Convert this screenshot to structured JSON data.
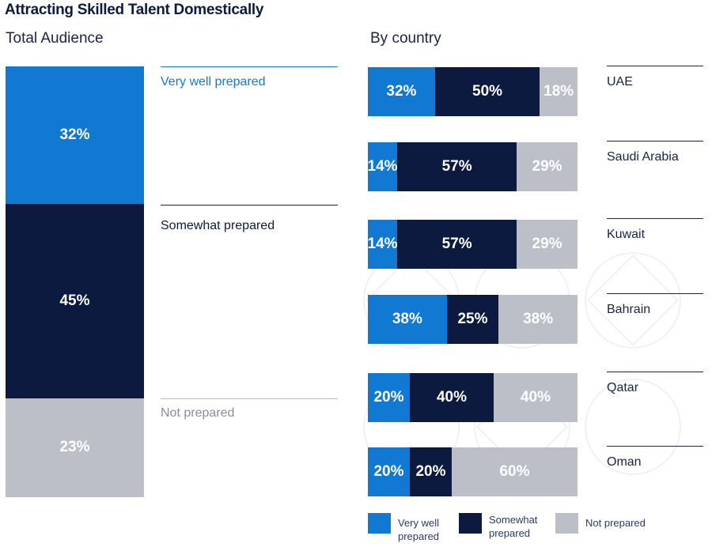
{
  "title": "Attracting Skilled Talent Domestically",
  "left_subtitle": "Total Audience",
  "right_subtitle": "By country",
  "colors": {
    "very_well": "#1279d3",
    "somewhat": "#0c1a40",
    "not": "#bdbfc8",
    "very_well_text": "#1279d3",
    "not_text": "#8a8d99"
  },
  "chart_data": [
    {
      "type": "bar",
      "stacked": true,
      "orientation": "vertical",
      "title": "Total Audience",
      "categories": [
        "Total Audience"
      ],
      "series": [
        {
          "name": "Very well prepared",
          "values": [
            32
          ]
        },
        {
          "name": "Somewhat prepared",
          "values": [
            45
          ]
        },
        {
          "name": "Not prepared",
          "values": [
            23
          ]
        }
      ],
      "labels": [
        "32%",
        "45%",
        "23%"
      ],
      "ylim": [
        0,
        100
      ]
    },
    {
      "type": "bar",
      "stacked": true,
      "orientation": "horizontal",
      "title": "By country",
      "categories": [
        "UAE",
        "Saudi Arabia",
        "Kuwait",
        "Bahrain",
        "Qatar",
        "Oman"
      ],
      "series": [
        {
          "name": "Very well prepared",
          "values": [
            32,
            14,
            14,
            38,
            20,
            20
          ],
          "labels": [
            "32%",
            "14%",
            "14%",
            "38%",
            "20%",
            "20%"
          ]
        },
        {
          "name": "Somewhat prepared",
          "values": [
            50,
            57,
            57,
            25,
            40,
            20
          ],
          "labels": [
            "50%",
            "57%",
            "57%",
            "25%",
            "40%",
            "20%"
          ]
        },
        {
          "name": "Not prepared",
          "values": [
            18,
            29,
            29,
            38,
            40,
            60
          ],
          "labels": [
            "18%",
            "29%",
            "29%",
            "38%",
            "40%",
            "60%"
          ]
        }
      ],
      "xlim": [
        0,
        100
      ],
      "legend_position": "bottom"
    }
  ],
  "legend": [
    {
      "label": "Very well prepared"
    },
    {
      "label": "Somewhat prepared"
    },
    {
      "label": "Not prepared"
    }
  ]
}
